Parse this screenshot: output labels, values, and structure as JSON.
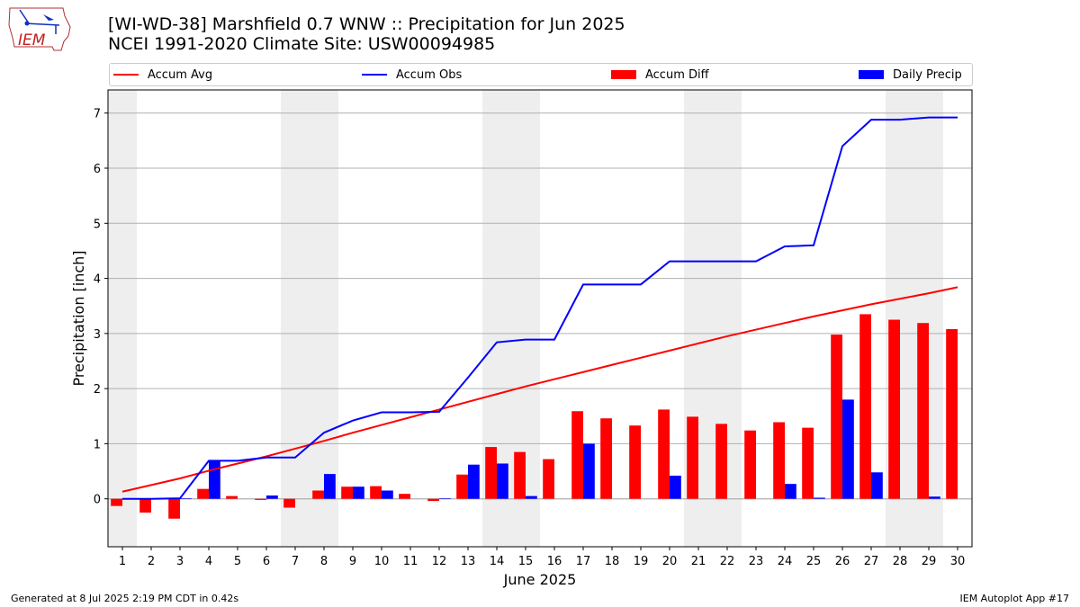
{
  "header": {
    "title_line1": "[WI-WD-38] Marshfield 0.7 WNW :: Precipitation for Jun 2025",
    "title_line2": "NCEI 1991-2020 Climate Site: USW00094985"
  },
  "logo": {
    "text": "IEM",
    "icon": "iem-iowa-logo"
  },
  "legend": {
    "items": [
      {
        "label": "Accum Avg",
        "color": "#ff0000",
        "kind": "line"
      },
      {
        "label": "Accum Obs",
        "color": "#0000ff",
        "kind": "line"
      },
      {
        "label": "Accum Diff",
        "color": "#ff0000",
        "kind": "box"
      },
      {
        "label": "Daily Precip",
        "color": "#0000ff",
        "kind": "box"
      }
    ]
  },
  "footer": {
    "left": "Generated at 8 Jul 2025 2:19 PM CDT in 0.42s",
    "right": "IEM Autoplot App #17"
  },
  "chart_data": {
    "type": "bar",
    "xlabel": "June 2025",
    "ylabel": "Precipitation [inch]",
    "ylim": [
      -0.87,
      7.42
    ],
    "xlim": [
      0.5,
      30.5
    ],
    "yticks": [
      0,
      1,
      2,
      3,
      4,
      5,
      6,
      7
    ],
    "grid": true,
    "legend_position": "top",
    "weekend_shading_days": [
      1,
      7,
      8,
      14,
      15,
      21,
      22,
      28,
      29
    ],
    "shade_color": "#eeeeee",
    "x": [
      1,
      2,
      3,
      4,
      5,
      6,
      7,
      8,
      9,
      10,
      11,
      12,
      13,
      14,
      15,
      16,
      17,
      18,
      19,
      20,
      21,
      22,
      23,
      24,
      25,
      26,
      27,
      28,
      29,
      30
    ],
    "series": [
      {
        "name": "Accum Avg",
        "kind": "line",
        "color": "#ff0000",
        "values": [
          0.13,
          0.25,
          0.37,
          0.51,
          0.64,
          0.77,
          0.91,
          1.05,
          1.2,
          1.34,
          1.48,
          1.62,
          1.76,
          1.9,
          2.04,
          2.17,
          2.3,
          2.43,
          2.56,
          2.69,
          2.82,
          2.95,
          3.07,
          3.19,
          3.31,
          3.42,
          3.53,
          3.63,
          3.73,
          3.84
        ]
      },
      {
        "name": "Accum Obs",
        "kind": "line",
        "color": "#0000ff",
        "values": [
          0.0,
          0.0,
          0.01,
          0.69,
          0.69,
          0.75,
          0.75,
          1.2,
          1.42,
          1.57,
          1.57,
          1.58,
          2.2,
          2.84,
          2.89,
          2.89,
          3.89,
          3.89,
          3.89,
          4.31,
          4.31,
          4.31,
          4.31,
          4.58,
          4.6,
          6.4,
          6.88,
          6.88,
          6.92,
          6.92
        ]
      },
      {
        "name": "Accum Diff",
        "kind": "bar",
        "color": "#ff0000",
        "values": [
          -0.13,
          -0.25,
          -0.36,
          0.18,
          0.05,
          -0.02,
          -0.16,
          0.15,
          0.22,
          0.23,
          0.09,
          -0.04,
          0.44,
          0.94,
          0.85,
          0.72,
          1.59,
          1.46,
          1.33,
          1.62,
          1.49,
          1.36,
          1.24,
          1.39,
          1.29,
          2.98,
          3.35,
          3.25,
          3.19,
          3.08
        ]
      },
      {
        "name": "Daily Precip",
        "kind": "bar",
        "color": "#0000ff",
        "values": [
          0.0,
          0.0,
          0.01,
          0.68,
          0.0,
          0.06,
          0.0,
          0.45,
          0.22,
          0.15,
          0.0,
          0.01,
          0.62,
          0.64,
          0.05,
          0.0,
          1.0,
          0.0,
          0.0,
          0.42,
          0.0,
          0.0,
          0.0,
          0.27,
          0.02,
          1.8,
          0.48,
          0.0,
          0.04,
          0.0
        ]
      }
    ]
  }
}
